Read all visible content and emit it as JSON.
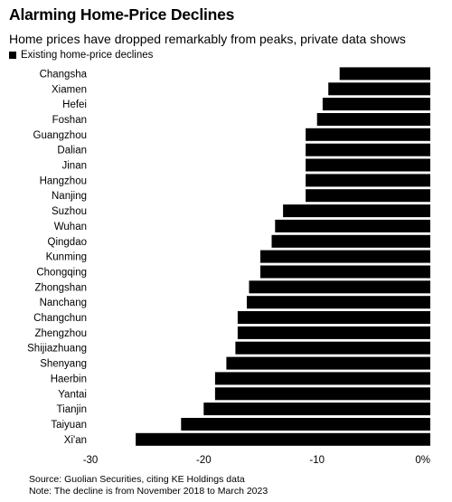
{
  "title": "Alarming Home-Price Declines",
  "subtitle": "Home prices have dropped remarkably from peaks, private data shows",
  "source": "Source: Guolian Securities, citing KE Holdings data",
  "note": "Note: The decline is from November 2018 to March 2023",
  "chart_data": {
    "type": "bar",
    "orientation": "horizontal",
    "series": [
      {
        "name": "Existing home-price declines",
        "color": "#000000",
        "values": [
          -8.0,
          -9.0,
          -9.5,
          -10.0,
          -11.0,
          -11.0,
          -11.0,
          -11.0,
          -11.0,
          -13.0,
          -13.7,
          -14.0,
          -15.0,
          -15.0,
          -16.0,
          -16.2,
          -17.0,
          -17.0,
          -17.2,
          -18.0,
          -19.0,
          -19.0,
          -20.0,
          -22.0,
          -26.0
        ]
      }
    ],
    "categories": [
      "Changsha",
      "Xiamen",
      "Hefei",
      "Foshan",
      "Guangzhou",
      "Dalian",
      "Jinan",
      "Hangzhou",
      "Nanjing",
      "Suzhou",
      "Wuhan",
      "Qingdao",
      "Kunming",
      "Chongqing",
      "Zhongshan",
      "Nanchang",
      "Changchun",
      "Zhengzhou",
      "Shijiazhuang",
      "Shenyang",
      "Haerbin",
      "Yantai",
      "Tianjin",
      "Taiyuan",
      "Xi'an"
    ],
    "xlim": [
      -30,
      0
    ],
    "xticks": [
      "-30",
      "-20",
      "-10",
      "0%"
    ],
    "tick_values": [
      -30,
      -20,
      -10,
      0
    ],
    "legend_position": "top-left",
    "grid": false
  }
}
